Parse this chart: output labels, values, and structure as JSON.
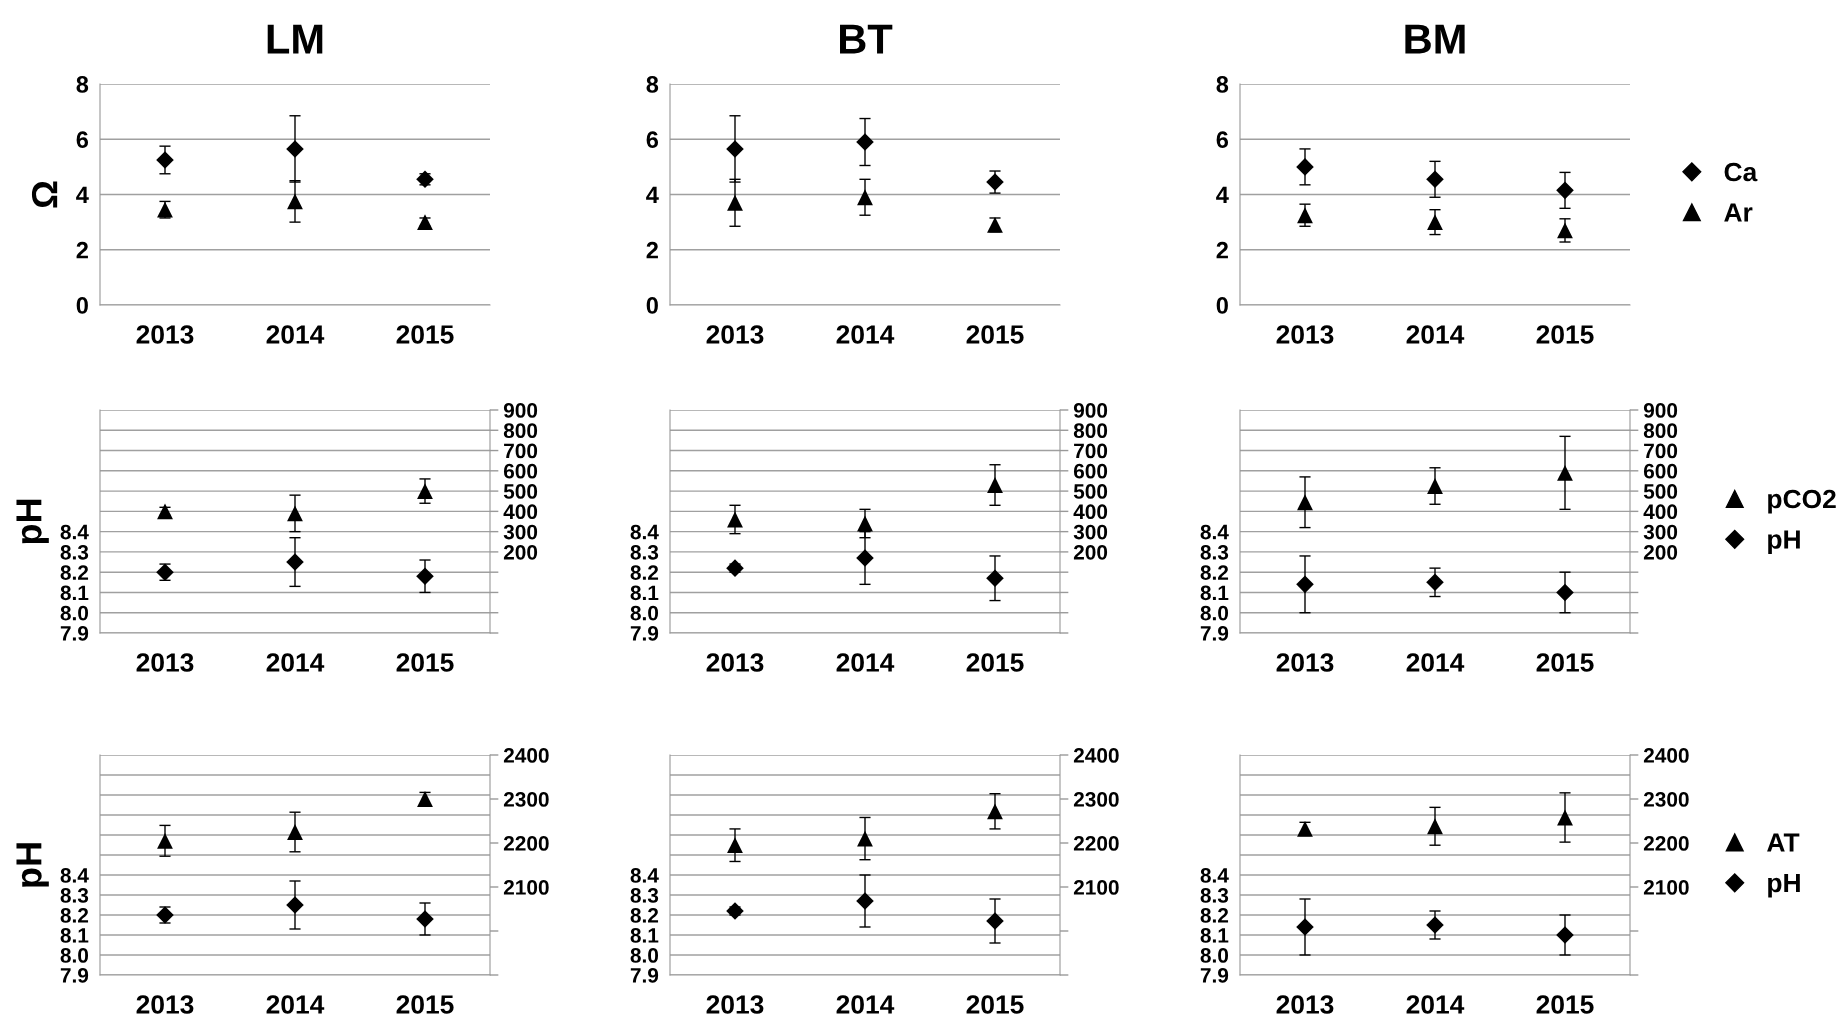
{
  "chart_data": [
    {
      "type": "scatter",
      "title": "LM",
      "ylabel": "Ω",
      "categories": [
        "2013",
        "2014",
        "2015"
      ],
      "ylim": [
        0,
        8
      ],
      "yticks": [
        0,
        2,
        4,
        6,
        8
      ],
      "grid": "y",
      "series": [
        {
          "color": "#000000",
          "marker": "diamond",
          "values": [
            5.25,
            5.65,
            4.55
          ],
          "errors": [
            0.5,
            1.2,
            0.2
          ]
        },
        {
          "color": "#000000",
          "marker": "triangle",
          "values": [
            3.45,
            3.75,
            3.0
          ],
          "errors": [
            0.3,
            0.75,
            0.15
          ]
        }
      ]
    },
    {
      "type": "scatter",
      "title": "BT",
      "categories": [
        "2013",
        "2014",
        "2015"
      ],
      "ylim": [
        0,
        8
      ],
      "yticks": [
        0,
        2,
        4,
        6,
        8
      ],
      "grid": "y",
      "series": [
        {
          "color": "#000000",
          "marker": "diamond",
          "values": [
            5.65,
            5.9,
            4.45
          ],
          "errors": [
            1.2,
            0.85,
            0.4
          ]
        },
        {
          "color": "#000000",
          "marker": "triangle",
          "values": [
            3.7,
            3.9,
            2.9
          ],
          "errors": [
            0.85,
            0.65,
            0.25
          ]
        }
      ]
    },
    {
      "type": "scatter",
      "title": "BM",
      "categories": [
        "2013",
        "2014",
        "2015"
      ],
      "ylim": [
        0,
        8
      ],
      "yticks": [
        0,
        2,
        4,
        6,
        8
      ],
      "grid": "y",
      "legend": "right",
      "series": [
        {
          "name": "Ca",
          "color": "#000000",
          "marker": "diamond",
          "values": [
            5.0,
            4.55,
            4.15
          ],
          "errors": [
            0.65,
            0.65,
            0.65
          ]
        },
        {
          "name": "Ar",
          "color": "#000000",
          "marker": "triangle",
          "values": [
            3.25,
            3.0,
            2.7
          ],
          "errors": [
            0.4,
            0.45,
            0.42
          ]
        }
      ]
    },
    {
      "type": "scatter",
      "ylabel": "pH",
      "categories": [
        "2013",
        "2014",
        "2015"
      ],
      "ylim": [
        7.9,
        9.0
      ],
      "yticks": [
        7.9,
        {
          "value": 8.0,
          "label": "8.0"
        },
        8.1,
        8.2,
        8.3,
        8.4,
        {
          "value": 8.5,
          "label": null
        },
        {
          "value": 8.6,
          "label": null
        },
        {
          "value": 8.7,
          "label": null
        },
        {
          "value": 8.8,
          "label": null
        },
        {
          "value": 8.9,
          "label": null
        },
        {
          "value": 9.0,
          "label": null
        }
      ],
      "y2lim": [
        -200,
        900
      ],
      "y2ticks": [
        {
          "value": -200,
          "label": null
        },
        {
          "value": -100,
          "label": null
        },
        {
          "value": 0,
          "label": null
        },
        {
          "value": 100,
          "label": null
        },
        200,
        300,
        400,
        500,
        600,
        700,
        800,
        900
      ],
      "grid": "y",
      "series": [
        {
          "color": "#000000",
          "marker": "triangle",
          "axis": "y2",
          "values": [
            400,
            390,
            500
          ],
          "errors": [
            20,
            90,
            60
          ]
        },
        {
          "color": "#000000",
          "marker": "diamond",
          "values": [
            8.2,
            8.25,
            8.18
          ],
          "errors": [
            0.04,
            0.12,
            0.08
          ]
        }
      ]
    },
    {
      "type": "scatter",
      "categories": [
        "2013",
        "2014",
        "2015"
      ],
      "ylim": [
        7.9,
        9.0
      ],
      "yticks": [
        7.9,
        {
          "value": 8.0,
          "label": "8.0"
        },
        8.1,
        8.2,
        8.3,
        8.4,
        {
          "value": 8.5,
          "label": null
        },
        {
          "value": 8.6,
          "label": null
        },
        {
          "value": 8.7,
          "label": null
        },
        {
          "value": 8.8,
          "label": null
        },
        {
          "value": 8.9,
          "label": null
        },
        {
          "value": 9.0,
          "label": null
        }
      ],
      "y2lim": [
        -200,
        900
      ],
      "y2ticks": [
        {
          "value": -200,
          "label": null
        },
        {
          "value": -100,
          "label": null
        },
        {
          "value": 0,
          "label": null
        },
        {
          "value": 100,
          "label": null
        },
        200,
        300,
        400,
        500,
        600,
        700,
        800,
        900
      ],
      "grid": "y",
      "series": [
        {
          "color": "#000000",
          "marker": "triangle",
          "axis": "y2",
          "values": [
            360,
            340,
            530
          ],
          "errors": [
            70,
            70,
            100
          ]
        },
        {
          "color": "#000000",
          "marker": "diamond",
          "values": [
            8.22,
            8.27,
            8.17
          ],
          "errors": [
            0.02,
            0.13,
            0.11
          ]
        }
      ]
    },
    {
      "type": "scatter",
      "categories": [
        "2013",
        "2014",
        "2015"
      ],
      "ylim": [
        7.9,
        9.0
      ],
      "yticks": [
        7.9,
        {
          "value": 8.0,
          "label": "8.0"
        },
        8.1,
        8.2,
        8.3,
        8.4,
        {
          "value": 8.5,
          "label": null
        },
        {
          "value": 8.6,
          "label": null
        },
        {
          "value": 8.7,
          "label": null
        },
        {
          "value": 8.8,
          "label": null
        },
        {
          "value": 8.9,
          "label": null
        },
        {
          "value": 9.0,
          "label": null
        }
      ],
      "y2lim": [
        -200,
        900
      ],
      "y2ticks": [
        {
          "value": -200,
          "label": null
        },
        {
          "value": -100,
          "label": null
        },
        {
          "value": 0,
          "label": null
        },
        {
          "value": 100,
          "label": null
        },
        200,
        300,
        400,
        500,
        600,
        700,
        800,
        900
      ],
      "grid": "y",
      "legend": "right",
      "series": [
        {
          "name": "pCO2",
          "color": "#000000",
          "marker": "triangle",
          "axis": "y2",
          "values": [
            445,
            525,
            590
          ],
          "errors": [
            125,
            90,
            180
          ]
        },
        {
          "name": "pH",
          "color": "#000000",
          "marker": "diamond",
          "values": [
            8.14,
            8.15,
            8.1
          ],
          "errors": [
            0.14,
            0.07,
            0.1
          ]
        }
      ]
    },
    {
      "type": "scatter",
      "ylabel": "pH",
      "categories": [
        "2013",
        "2014",
        "2015"
      ],
      "ylim": [
        7.9,
        9.0
      ],
      "yticks": [
        7.9,
        {
          "value": 8.0,
          "label": "8.0"
        },
        8.1,
        8.2,
        8.3,
        8.4,
        {
          "value": 8.5,
          "label": null
        },
        {
          "value": 8.6,
          "label": null
        },
        {
          "value": 8.7,
          "label": null
        },
        {
          "value": 8.8,
          "label": null
        },
        {
          "value": 8.9,
          "label": null
        },
        {
          "value": 9.0,
          "label": null
        }
      ],
      "y2lim": [
        1900,
        2400
      ],
      "y2ticks": [
        {
          "value": 1900,
          "label": null
        },
        {
          "value": 2000,
          "label": null
        },
        2100,
        2200,
        2300,
        2400
      ],
      "grid": "y",
      "series": [
        {
          "color": "#000000",
          "marker": "triangle",
          "axis": "y2",
          "values": [
            2205,
            2225,
            2300
          ],
          "errors": [
            35,
            45,
            15
          ]
        },
        {
          "color": "#000000",
          "marker": "diamond",
          "values": [
            8.2,
            8.25,
            8.18
          ],
          "errors": [
            0.04,
            0.12,
            0.08
          ]
        }
      ]
    },
    {
      "type": "scatter",
      "categories": [
        "2013",
        "2014",
        "2015"
      ],
      "ylim": [
        7.9,
        9.0
      ],
      "yticks": [
        7.9,
        {
          "value": 8.0,
          "label": "8.0"
        },
        8.1,
        8.2,
        8.3,
        8.4,
        {
          "value": 8.5,
          "label": null
        },
        {
          "value": 8.6,
          "label": null
        },
        {
          "value": 8.7,
          "label": null
        },
        {
          "value": 8.8,
          "label": null
        },
        {
          "value": 8.9,
          "label": null
        },
        {
          "value": 9.0,
          "label": null
        }
      ],
      "y2lim": [
        1900,
        2400
      ],
      "y2ticks": [
        {
          "value": 1900,
          "label": null
        },
        {
          "value": 2000,
          "label": null
        },
        2100,
        2200,
        2300,
        2400
      ],
      "grid": "y",
      "series": [
        {
          "color": "#000000",
          "marker": "triangle",
          "axis": "y2",
          "values": [
            2195,
            2210,
            2272
          ],
          "errors": [
            37,
            48,
            40
          ]
        },
        {
          "color": "#000000",
          "marker": "diamond",
          "values": [
            8.22,
            8.27,
            8.17
          ],
          "errors": [
            0.02,
            0.13,
            0.11
          ]
        }
      ]
    },
    {
      "type": "scatter",
      "categories": [
        "2013",
        "2014",
        "2015"
      ],
      "ylim": [
        7.9,
        9.0
      ],
      "yticks": [
        7.9,
        {
          "value": 8.0,
          "label": "8.0"
        },
        8.1,
        8.2,
        8.3,
        8.4,
        {
          "value": 8.5,
          "label": null
        },
        {
          "value": 8.6,
          "label": null
        },
        {
          "value": 8.7,
          "label": null
        },
        {
          "value": 8.8,
          "label": null
        },
        {
          "value": 8.9,
          "label": null
        },
        {
          "value": 9.0,
          "label": null
        }
      ],
      "y2lim": [
        1900,
        2400
      ],
      "y2ticks": [
        {
          "value": 1900,
          "label": null
        },
        {
          "value": 2000,
          "label": null
        },
        2100,
        2200,
        2300,
        2400
      ],
      "grid": "y",
      "legend": "right",
      "series": [
        {
          "name": "AT",
          "color": "#000000",
          "marker": "triangle",
          "axis": "y2",
          "values": [
            2232,
            2238,
            2258
          ],
          "errors": [
            15,
            43,
            56
          ]
        },
        {
          "name": "pH",
          "color": "#000000",
          "marker": "diamond",
          "values": [
            8.14,
            8.15,
            8.1
          ],
          "errors": [
            0.14,
            0.07,
            0.1
          ]
        }
      ]
    }
  ]
}
